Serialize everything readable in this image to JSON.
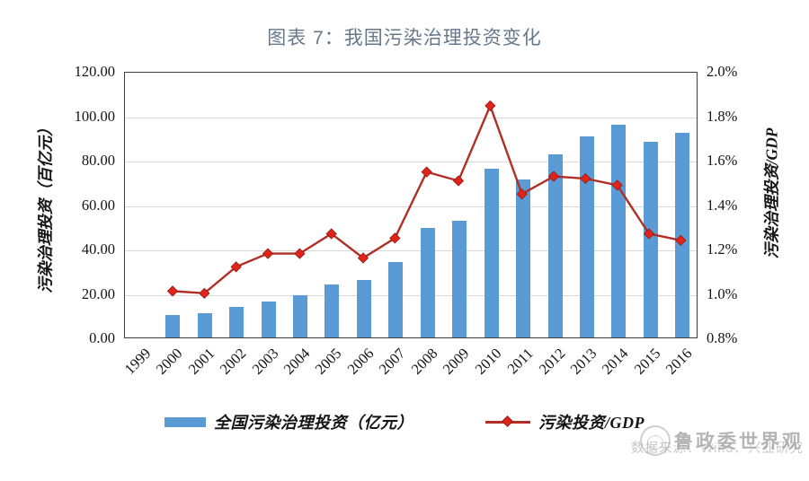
{
  "title": "图表 7：我国污染治理投资变化",
  "chart_data": {
    "type": "bar+line combo",
    "title": "图表 7：我国污染治理投资变化",
    "categories": [
      "1999",
      "2000",
      "2001",
      "2002",
      "2003",
      "2004",
      "2005",
      "2006",
      "2007",
      "2008",
      "2009",
      "2010",
      "2011",
      "2012",
      "2013",
      "2014",
      "2015",
      "2016"
    ],
    "series": [
      {
        "name": "全国污染治理投资（亿元）",
        "type": "bar",
        "axis": "left",
        "color": "#5B9BD5",
        "values": [
          null,
          10.1,
          11.1,
          13.6,
          16.3,
          19.1,
          23.9,
          25.7,
          33.9,
          49.4,
          52.6,
          76.1,
          71.1,
          82.5,
          90.4,
          95.8,
          88.1,
          92.2
        ]
      },
      {
        "name": "污染投资/GDP",
        "type": "line",
        "axis": "right",
        "line_color": "#B02E24",
        "marker": "diamond",
        "marker_color": "#E2231A",
        "values": [
          null,
          1.01,
          1.0,
          1.12,
          1.18,
          1.18,
          1.27,
          1.16,
          1.25,
          1.55,
          1.51,
          1.85,
          1.45,
          1.53,
          1.52,
          1.49,
          1.27,
          1.24
        ]
      }
    ],
    "left_axis": {
      "title": "污染治理投资（百亿元）",
      "min": 0,
      "max": 120,
      "step": 20,
      "tick_labels": [
        "120.00",
        "100.00",
        "80.00",
        "60.00",
        "40.00",
        "20.00",
        "0.00"
      ]
    },
    "right_axis": {
      "title": "污染治理投资/GDP",
      "min": 0.8,
      "max": 2.0,
      "step": 0.2,
      "tick_labels": [
        "2.0%",
        "1.8%",
        "1.6%",
        "1.4%",
        "1.2%",
        "1.0%",
        "0.8%"
      ]
    },
    "grid": true,
    "legend_position": "bottom"
  },
  "legend": {
    "items": [
      {
        "label": "全国污染治理投资（亿元）",
        "swatch": "bar",
        "color": "#5B9BD5"
      },
      {
        "label": "污染投资/GDP",
        "swatch": "line-diamond",
        "color": "#B02E24"
      }
    ]
  },
  "footer": {
    "source": "数据来源：Wind、兴业研究",
    "watermark": "鲁政委世界观"
  },
  "colors": {
    "bar": "#5B9BD5",
    "line": "#B02E24",
    "marker": "#E2231A",
    "gridline": "#d9d9d9",
    "plot_border": "#3c3c3c",
    "title": "#67788b",
    "source_text": "#c9c9c9"
  }
}
